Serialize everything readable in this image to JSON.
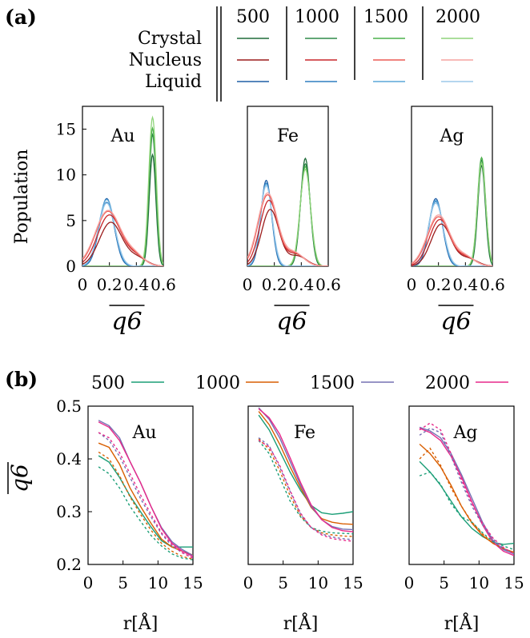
{
  "panel_a": {
    "label": "(a)",
    "legend": {
      "columns": [
        "500",
        "1000",
        "1500",
        "2000"
      ],
      "rows": [
        {
          "label": "Crystal",
          "colors": [
            "#1e6b38",
            "#2e8a48",
            "#4cb04c",
            "#8fd47a"
          ]
        },
        {
          "label": "Nucleus",
          "colors": [
            "#9b1c1c",
            "#c8262a",
            "#ec5a55",
            "#f6a3a0"
          ]
        },
        {
          "label": "Liquid",
          "colors": [
            "#1f5fa6",
            "#2f7fc0",
            "#5aa7d8",
            "#9cc9ea"
          ]
        }
      ]
    },
    "ylabel": "Population",
    "xlabel": "q6"
  },
  "panel_b": {
    "label": "(b)",
    "legend": [
      {
        "label": "500",
        "color": "#1b9e77"
      },
      {
        "label": "1000",
        "color": "#d95f02"
      },
      {
        "label": "1500",
        "color": "#7570b3"
      },
      {
        "label": "2000",
        "color": "#e7298a"
      }
    ],
    "ylabel": "q6",
    "xlabel": "r[Å]"
  },
  "chart_data": [
    {
      "type": "line",
      "title": "Au",
      "xlabel": "q6",
      "ylabel": "Population",
      "xlim": [
        0,
        0.6
      ],
      "ylim": [
        0,
        17.5
      ],
      "xticks": [
        "0",
        "0.2",
        "0.4",
        "0.6"
      ],
      "yticks": [
        "0",
        "5",
        "10",
        "15"
      ],
      "distributions": {
        "liquid": {
          "center": 0.18,
          "width": 0.055,
          "peaks": [
            7.4,
            7.0,
            7.3,
            6.9
          ]
        },
        "nucleus": {
          "center": [
            0.21,
            0.2,
            0.19,
            0.19
          ],
          "width": 0.085,
          "peaks": [
            4.8,
            5.6,
            6.0,
            6.1
          ]
        },
        "crystal": {
          "center": 0.52,
          "width": 0.025,
          "peaks": [
            12.2,
            14.4,
            15.1,
            16.3
          ]
        }
      }
    },
    {
      "type": "line",
      "title": "Fe",
      "xlabel": "q6",
      "ylabel": "",
      "xlim": [
        0,
        0.6
      ],
      "ylim": [
        0,
        17.5
      ],
      "xticks": [
        "0",
        "0.2",
        "0.4",
        "0.6"
      ],
      "yticks": [],
      "distributions": {
        "liquid": {
          "center": 0.14,
          "width": 0.04,
          "peaks": [
            9.4,
            9.1,
            9.0,
            8.8
          ]
        },
        "nucleus": {
          "center": [
            0.17,
            0.16,
            0.15,
            0.15
          ],
          "width": 0.065,
          "peaks": [
            6.2,
            7.2,
            7.8,
            8.0
          ]
        },
        "crystal": {
          "center": 0.43,
          "width": 0.035,
          "peaks": [
            11.8,
            11.2,
            10.9,
            10.6
          ]
        }
      }
    },
    {
      "type": "line",
      "title": "Ag",
      "xlabel": "q6",
      "ylabel": "",
      "xlim": [
        0,
        0.6
      ],
      "ylim": [
        0,
        17.5
      ],
      "xticks": [
        "0",
        "0.2",
        "0.4",
        "0.6"
      ],
      "yticks": [],
      "distributions": {
        "liquid": {
          "center": 0.18,
          "width": 0.05,
          "peaks": [
            7.4,
            7.1,
            7.2,
            6.9
          ]
        },
        "nucleus": {
          "center": [
            0.22,
            0.21,
            0.2,
            0.2
          ],
          "width": 0.075,
          "peaks": [
            4.6,
            5.1,
            5.4,
            5.6
          ]
        },
        "crystal": {
          "center": 0.52,
          "width": 0.028,
          "peaks": [
            11.0,
            11.6,
            11.9,
            11.3
          ]
        }
      }
    },
    {
      "type": "line",
      "title": "Au",
      "xlabel": "r[Å]",
      "ylabel": "q6",
      "xlim": [
        0,
        15
      ],
      "ylim": [
        0.2,
        0.5
      ],
      "xticks": [
        "0",
        "5",
        "10",
        "15"
      ],
      "yticks": [
        "0.2",
        "0.3",
        "0.4",
        "0.5"
      ],
      "x": [
        1.5,
        3,
        4.5,
        6,
        7.5,
        9,
        10.5,
        12,
        13.5,
        15
      ],
      "series": [
        {
          "name": "500",
          "style": "solid",
          "values": [
            0.406,
            0.394,
            0.365,
            0.33,
            0.3,
            0.271,
            0.245,
            0.233,
            0.233,
            0.233
          ]
        },
        {
          "name": "1000",
          "style": "solid",
          "values": [
            0.43,
            0.422,
            0.39,
            0.345,
            0.31,
            0.278,
            0.248,
            0.233,
            0.225,
            0.218
          ]
        },
        {
          "name": "1500",
          "style": "solid",
          "values": [
            0.473,
            0.463,
            0.44,
            0.395,
            0.355,
            0.31,
            0.27,
            0.243,
            0.228,
            0.217
          ]
        },
        {
          "name": "2000",
          "style": "solid",
          "values": [
            0.47,
            0.46,
            0.435,
            0.395,
            0.355,
            0.31,
            0.268,
            0.24,
            0.225,
            0.215
          ]
        },
        {
          "name": "500",
          "style": "dashed",
          "values": [
            0.385,
            0.372,
            0.345,
            0.31,
            0.282,
            0.255,
            0.235,
            0.22,
            0.212,
            0.209
          ]
        },
        {
          "name": "1000",
          "style": "dashed",
          "values": [
            0.413,
            0.4,
            0.368,
            0.328,
            0.295,
            0.265,
            0.24,
            0.225,
            0.215,
            0.21
          ]
        },
        {
          "name": "1500",
          "style": "dashed",
          "values": [
            0.45,
            0.435,
            0.405,
            0.365,
            0.325,
            0.29,
            0.258,
            0.235,
            0.222,
            0.212
          ]
        },
        {
          "name": "2000",
          "style": "dashed",
          "values": [
            0.45,
            0.44,
            0.412,
            0.372,
            0.332,
            0.295,
            0.26,
            0.238,
            0.222,
            0.212
          ]
        }
      ]
    },
    {
      "type": "line",
      "title": "Fe",
      "xlabel": "r[Å]",
      "ylabel": "",
      "xlim": [
        0,
        15
      ],
      "ylim": [
        0.2,
        0.5
      ],
      "xticks": [
        "0",
        "5",
        "10",
        "15"
      ],
      "yticks": [],
      "x": [
        1.5,
        3,
        4.5,
        6,
        7.5,
        9,
        10.5,
        12,
        13.5,
        15
      ],
      "series": [
        {
          "name": "500",
          "style": "solid",
          "values": [
            0.483,
            0.455,
            0.415,
            0.375,
            0.34,
            0.312,
            0.298,
            0.295,
            0.297,
            0.3
          ]
        },
        {
          "name": "1000",
          "style": "solid",
          "values": [
            0.49,
            0.465,
            0.428,
            0.385,
            0.345,
            0.308,
            0.287,
            0.28,
            0.277,
            0.276
          ]
        },
        {
          "name": "1500",
          "style": "solid",
          "values": [
            0.497,
            0.475,
            0.44,
            0.395,
            0.35,
            0.31,
            0.285,
            0.272,
            0.267,
            0.266
          ]
        },
        {
          "name": "2000",
          "style": "solid",
          "values": [
            0.495,
            0.478,
            0.447,
            0.402,
            0.355,
            0.313,
            0.285,
            0.27,
            0.264,
            0.262
          ]
        },
        {
          "name": "500",
          "style": "dashed",
          "values": [
            0.435,
            0.41,
            0.365,
            0.32,
            0.29,
            0.27,
            0.263,
            0.26,
            0.259,
            0.258
          ]
        },
        {
          "name": "1000",
          "style": "dashed",
          "values": [
            0.438,
            0.418,
            0.378,
            0.33,
            0.292,
            0.27,
            0.26,
            0.256,
            0.254,
            0.253
          ]
        },
        {
          "name": "1500",
          "style": "dashed",
          "values": [
            0.44,
            0.425,
            0.385,
            0.338,
            0.295,
            0.27,
            0.258,
            0.252,
            0.249,
            0.247
          ]
        },
        {
          "name": "2000",
          "style": "dashed",
          "values": [
            0.435,
            0.423,
            0.388,
            0.34,
            0.297,
            0.27,
            0.256,
            0.249,
            0.246,
            0.244
          ]
        }
      ]
    },
    {
      "type": "line",
      "title": "Ag",
      "xlabel": "r[Å]",
      "ylabel": "",
      "xlim": [
        0,
        15
      ],
      "ylim": [
        0.2,
        0.5
      ],
      "xticks": [
        "0",
        "5",
        "10",
        "15"
      ],
      "yticks": [],
      "x": [
        1.5,
        3,
        4.5,
        6,
        7.5,
        9,
        10.5,
        12,
        13.5,
        15
      ],
      "series": [
        {
          "name": "500",
          "style": "solid",
          "values": [
            0.395,
            0.375,
            0.35,
            0.32,
            0.29,
            0.268,
            0.253,
            0.242,
            0.238,
            0.24
          ]
        },
        {
          "name": "1000",
          "style": "solid",
          "values": [
            0.428,
            0.41,
            0.385,
            0.35,
            0.31,
            0.278,
            0.255,
            0.24,
            0.23,
            0.223
          ]
        },
        {
          "name": "1500",
          "style": "solid",
          "values": [
            0.46,
            0.453,
            0.44,
            0.41,
            0.37,
            0.325,
            0.28,
            0.245,
            0.228,
            0.22
          ]
        },
        {
          "name": "2000",
          "style": "solid",
          "values": [
            0.458,
            0.45,
            0.435,
            0.405,
            0.365,
            0.318,
            0.275,
            0.242,
            0.225,
            0.217
          ]
        },
        {
          "name": "500",
          "style": "dashed",
          "values": [
            0.368,
            0.375,
            0.352,
            0.315,
            0.29,
            0.28,
            0.26,
            0.243,
            0.235,
            0.228
          ]
        },
        {
          "name": "1000",
          "style": "dashed",
          "values": [
            0.4,
            0.42,
            0.388,
            0.345,
            0.31,
            0.28,
            0.258,
            0.24,
            0.23,
            0.222
          ]
        },
        {
          "name": "1500",
          "style": "dashed",
          "values": [
            0.445,
            0.458,
            0.45,
            0.405,
            0.355,
            0.31,
            0.275,
            0.248,
            0.23,
            0.22
          ]
        },
        {
          "name": "2000",
          "style": "dashed",
          "values": [
            0.455,
            0.468,
            0.455,
            0.41,
            0.36,
            0.315,
            0.278,
            0.25,
            0.232,
            0.22
          ]
        }
      ]
    }
  ]
}
